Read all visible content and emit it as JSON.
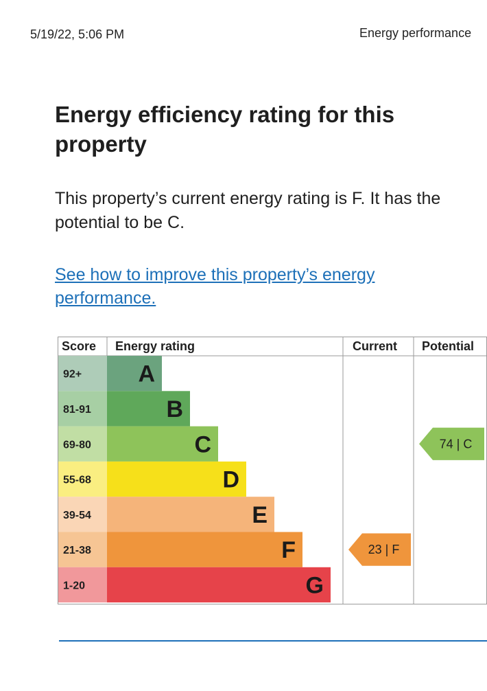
{
  "print_header": {
    "date_time": "5/19/22, 5:06 PM",
    "document_title": "Energy performance"
  },
  "heading": "Energy efficiency rating for this property",
  "summary": "This property’s current energy rating is F. It has the potential to be C.",
  "improve_link": "See how to improve this property’s energy performance.",
  "chart_data": {
    "type": "table",
    "title": "Energy efficiency rating for this property",
    "columns": [
      "Score",
      "Energy rating",
      "Current",
      "Potential"
    ],
    "bands": [
      {
        "letter": "A",
        "score_range": "92+",
        "color": "#008054"
      },
      {
        "letter": "B",
        "score_range": "81-91",
        "color": "#19b459"
      },
      {
        "letter": "C",
        "score_range": "69-80",
        "color": "#8dce46"
      },
      {
        "letter": "D",
        "score_range": "55-68",
        "color": "#ffd500"
      },
      {
        "letter": "E",
        "score_range": "39-54",
        "color": "#fcaa65"
      },
      {
        "letter": "F",
        "score_range": "21-38",
        "color": "#ef8023"
      },
      {
        "letter": "G",
        "score_range": "1-20",
        "color": "#e9153b"
      }
    ],
    "current": {
      "score": 23,
      "letter": "F",
      "label": "23 | F"
    },
    "potential": {
      "score": 74,
      "letter": "C",
      "label": "74 | C"
    }
  },
  "colors": {
    "link": "#1d70b8",
    "band_a": "#6ba37e",
    "band_b": "#5fa85a",
    "band_c": "#8ec35a",
    "band_d": "#f6e01a",
    "band_e": "#f5b47a",
    "band_f": "#ef953c",
    "band_g": "#e6434a"
  }
}
